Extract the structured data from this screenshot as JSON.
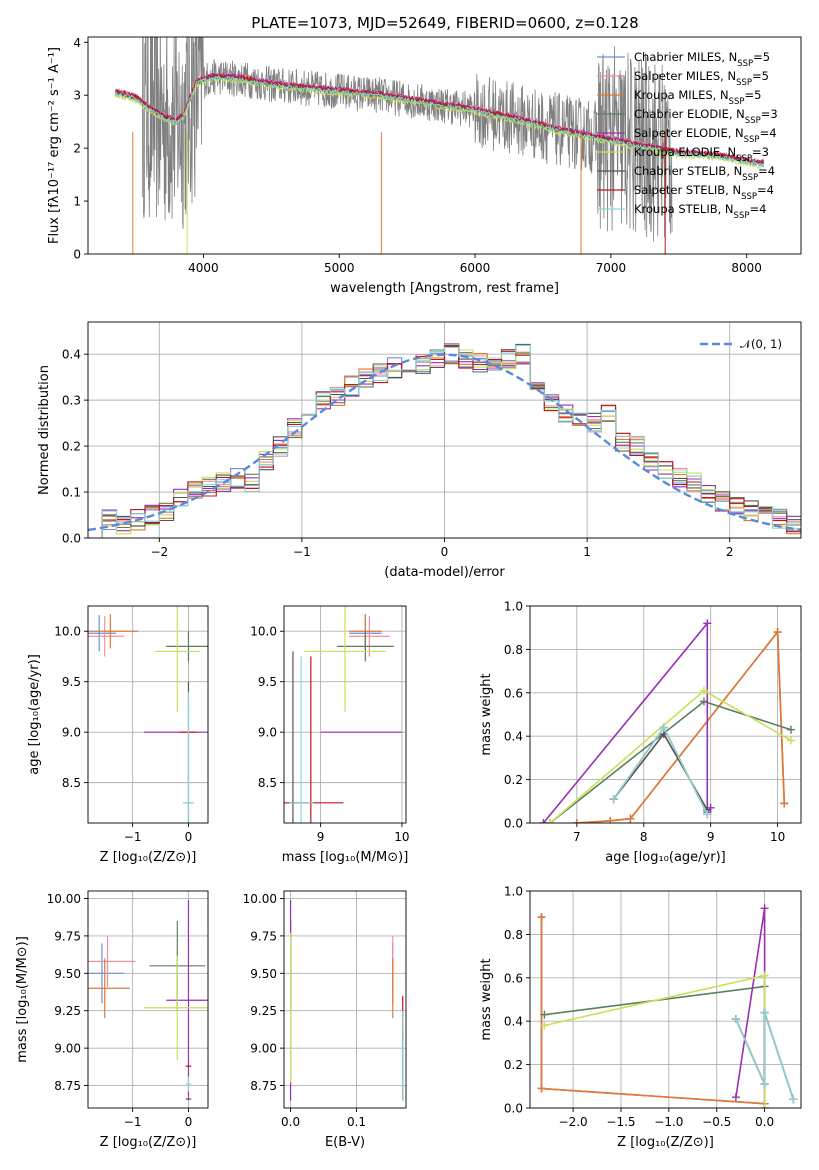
{
  "figure_title": "PLATE=1073, MJD=52649, FIBERID=0600, z=0.128",
  "colors": {
    "Chabrier MILES": "#6b8fd6",
    "Salpeter MILES": "#f0909a",
    "Kroupa MILES": "#e07a30",
    "Chabrier ELODIE": "#5b7f5e",
    "Salpeter ELODIE": "#9a2fb5",
    "Kroupa ELODIE": "#c8e05a",
    "Chabrier STELIB": "#555555",
    "Salpeter STELIB": "#c0161b",
    "Kroupa STELIB": "#8ad6d6",
    "data": "#808080",
    "normal": "#5b8bd8"
  },
  "chart_data": [
    {
      "id": "spectrum",
      "type": "line",
      "title": "PLATE=1073, MJD=52649, FIBERID=0600, z=0.128",
      "xlabel": "wavelength [Angstrom, rest frame]",
      "ylabel": "Flux [fλ10⁻¹⁷ erg cm⁻² s⁻¹ A⁻¹]",
      "xlim": [
        3150,
        8400
      ],
      "ylim": [
        0,
        4.1
      ],
      "xticks": [
        4000,
        5000,
        6000,
        7000,
        8000
      ],
      "yticks": [
        0,
        1,
        2,
        3,
        4
      ],
      "legend_loc": "upper right",
      "model_continuum": [
        [
          3350,
          3.05
        ],
        [
          3500,
          2.95
        ],
        [
          3600,
          2.75
        ],
        [
          3700,
          2.6
        ],
        [
          3800,
          2.5
        ],
        [
          3850,
          2.6
        ],
        [
          3950,
          3.25
        ],
        [
          4100,
          3.35
        ],
        [
          4300,
          3.3
        ],
        [
          4500,
          3.2
        ],
        [
          4700,
          3.15
        ],
        [
          4900,
          3.1
        ],
        [
          5100,
          3.05
        ],
        [
          5300,
          3.0
        ],
        [
          5500,
          2.92
        ],
        [
          5800,
          2.8
        ],
        [
          6000,
          2.72
        ],
        [
          6300,
          2.55
        ],
        [
          6600,
          2.35
        ],
        [
          6900,
          2.2
        ],
        [
          7200,
          2.05
        ],
        [
          7500,
          1.9
        ],
        [
          7800,
          1.85
        ],
        [
          8100,
          1.7
        ]
      ],
      "data_range": [
        3550,
        7450
      ],
      "series": [
        {
          "name": "Chabrier MILES, N_SSP=5",
          "label_main": "Chabrier MILES, N",
          "label_sub": "SSP",
          "label_end": "=5"
        },
        {
          "name": "Salpeter MILES, N_SSP=5",
          "label_main": "Salpeter MILES, N",
          "label_sub": "SSP",
          "label_end": "=5"
        },
        {
          "name": "Kroupa MILES, N_SSP=5",
          "label_main": "Kroupa MILES, N",
          "label_sub": "SSP",
          "label_end": "=5"
        },
        {
          "name": "Chabrier ELODIE, N_SSP=3",
          "label_main": "Chabrier ELODIE, N",
          "label_sub": "SSP",
          "label_end": "=3"
        },
        {
          "name": "Salpeter ELODIE, N_SSP=4",
          "label_main": "Salpeter ELODIE, N",
          "label_sub": "SSP",
          "label_end": "=4"
        },
        {
          "name": "Kroupa ELODIE, N_SSP=3",
          "label_main": "Kroupa ELODIE, N",
          "label_sub": "SSP",
          "label_end": "=3"
        },
        {
          "name": "Chabrier STELIB, N_SSP=4",
          "label_main": "Chabrier STELIB, N",
          "label_sub": "SSP",
          "label_end": "=4"
        },
        {
          "name": "Salpeter STELIB, N_SSP=4",
          "label_main": "Salpeter STELIB, N",
          "label_sub": "SSP",
          "label_end": "=4"
        },
        {
          "name": "Kroupa STELIB, N_SSP=4",
          "label_main": "Kroupa STELIB, N",
          "label_sub": "SSP",
          "label_end": "=4"
        }
      ]
    },
    {
      "id": "residuals",
      "type": "line",
      "xlabel": "(data-model)/error",
      "ylabel": "Normed distribution",
      "xlim": [
        -2.5,
        2.5
      ],
      "ylim": [
        0,
        0.47
      ],
      "xticks": [
        -2,
        -1,
        0,
        1,
        2
      ],
      "yticks": [
        0.0,
        0.1,
        0.2,
        0.3,
        0.4
      ],
      "grid": true,
      "legend_loc": "upper right",
      "normal_label": "𝒩(0, 1)",
      "bin_edges": [
        -2.5,
        -2.4,
        -2.3,
        -2.2,
        -2.1,
        -2.0,
        -1.9,
        -1.8,
        -1.7,
        -1.6,
        -1.5,
        -1.4,
        -1.3,
        -1.2,
        -1.1,
        -1.0,
        -0.9,
        -0.8,
        -0.7,
        -0.6,
        -0.5,
        -0.4,
        -0.3,
        -0.2,
        -0.1,
        0.0,
        0.1,
        0.2,
        0.3,
        0.4,
        0.5,
        0.6,
        0.7,
        0.8,
        0.9,
        1.0,
        1.1,
        1.2,
        1.3,
        1.4,
        1.5,
        1.6,
        1.7,
        1.8,
        1.9,
        2.0,
        2.1,
        2.2,
        2.3,
        2.4,
        2.5
      ],
      "hist_base": [
        0.02,
        0.04,
        0.03,
        0.04,
        0.05,
        0.06,
        0.09,
        0.1,
        0.11,
        0.12,
        0.13,
        0.12,
        0.17,
        0.2,
        0.24,
        0.27,
        0.3,
        0.31,
        0.33,
        0.35,
        0.36,
        0.37,
        0.37,
        0.38,
        0.39,
        0.4,
        0.39,
        0.38,
        0.38,
        0.39,
        0.4,
        0.34,
        0.29,
        0.27,
        0.25,
        0.25,
        0.27,
        0.21,
        0.2,
        0.17,
        0.15,
        0.13,
        0.12,
        0.1,
        0.08,
        0.07,
        0.06,
        0.05,
        0.04,
        0.03
      ],
      "series": [
        "Chabrier MILES",
        "Salpeter MILES",
        "Kroupa MILES",
        "Chabrier ELODIE",
        "Salpeter ELODIE",
        "Kroupa ELODIE",
        "Chabrier STELIB",
        "Salpeter STELIB",
        "Kroupa STELIB"
      ]
    },
    {
      "id": "age_vs_Z",
      "type": "scatter",
      "xlabel": "Z [log₁₀(Z/Z⊙)]",
      "ylabel": "age  [log₁₀(age/yr)]",
      "xlim": [
        -1.8,
        0.35
      ],
      "ylim": [
        8.1,
        10.25
      ],
      "xticks": [
        -1,
        0
      ],
      "yticks": [
        8.5,
        9.0,
        9.5,
        10.0
      ],
      "grid": true,
      "points": [
        {
          "s": "Chabrier MILES",
          "x": -1.6,
          "y": 9.98,
          "xerr": 0.3,
          "yerr": 0.18
        },
        {
          "s": "Salpeter MILES",
          "x": -1.5,
          "y": 9.95,
          "xerr": 0.35,
          "yerr": 0.2
        },
        {
          "s": "Kroupa MILES",
          "x": -1.4,
          "y": 10.0,
          "xerr": 0.5,
          "yerr": 0.17
        },
        {
          "s": "Chabrier ELODIE",
          "x": 0.0,
          "y": 9.85,
          "xerr": 0.4,
          "yerr": 0.15
        },
        {
          "s": "Salpeter ELODIE",
          "x": -0.2,
          "y": 9.0,
          "xerr": 0.6,
          "yerr": 0.0
        },
        {
          "s": "Kroupa ELODIE",
          "x": -0.2,
          "y": 9.8,
          "xerr": 0.4,
          "yerr": 0.6
        },
        {
          "s": "Chabrier STELIB",
          "x": 0.0,
          "y": 8.3,
          "xerr": 0.05,
          "yerr": 1.2
        },
        {
          "s": "Salpeter STELIB",
          "x": 0.0,
          "y": 9.0,
          "xerr": 0.0,
          "yerr": 0.0
        },
        {
          "s": "Kroupa STELIB",
          "x": 0.0,
          "y": 8.3,
          "xerr": 0.1,
          "yerr": 1.1
        }
      ]
    },
    {
      "id": "age_vs_mass",
      "type": "scatter",
      "xlabel": "mass [log₁₀(M/M⊙)]",
      "xlim": [
        8.55,
        10.05
      ],
      "ylim": [
        8.1,
        10.25
      ],
      "xticks": [
        9,
        10
      ],
      "yticks": [
        8.5,
        9.0,
        9.5,
        10.0
      ],
      "grid": true,
      "points": [
        {
          "s": "Chabrier MILES",
          "x": 9.55,
          "y": 9.98,
          "xerr": 0.2,
          "yerr": 0.18
        },
        {
          "s": "Salpeter MILES",
          "x": 9.6,
          "y": 9.95,
          "xerr": 0.25,
          "yerr": 0.2
        },
        {
          "s": "Kroupa MILES",
          "x": 9.55,
          "y": 10.0,
          "xerr": 0.2,
          "yerr": 0.17
        },
        {
          "s": "Chabrier ELODIE",
          "x": 9.55,
          "y": 9.85,
          "xerr": 0.35,
          "yerr": 0.15
        },
        {
          "s": "Salpeter ELODIE",
          "x": 9.5,
          "y": 9.0,
          "xerr": 0.5,
          "yerr": 0.0
        },
        {
          "s": "Kroupa ELODIE",
          "x": 9.3,
          "y": 9.8,
          "xerr": 0.5,
          "yerr": 0.6
        },
        {
          "s": "Chabrier STELIB",
          "x": 8.66,
          "y": 8.3,
          "xerr": 0.05,
          "yerr": 1.5
        },
        {
          "s": "Salpeter STELIB",
          "x": 8.88,
          "y": 8.3,
          "xerr": 0.4,
          "yerr": 1.45
        },
        {
          "s": "Kroupa STELIB",
          "x": 8.76,
          "y": 8.3,
          "xerr": 0.15,
          "yerr": 1.45
        }
      ]
    },
    {
      "id": "weight_vs_age",
      "type": "line",
      "xlabel": "age  [log₁₀(age/yr)]",
      "ylabel": "mass weight",
      "xlim": [
        6.3,
        10.35
      ],
      "ylim": [
        0,
        1.0
      ],
      "xticks": [
        7,
        8,
        9,
        10
      ],
      "yticks": [
        0.0,
        0.2,
        0.4,
        0.6,
        0.8,
        1.0
      ],
      "grid": true,
      "series": [
        {
          "s": "Chabrier MILES",
          "x": [
            7.0,
            7.5,
            7.8,
            10.0,
            10.1
          ],
          "y": [
            0.0,
            0.01,
            0.02,
            0.88,
            0.09
          ]
        },
        {
          "s": "Salpeter MILES",
          "x": [
            7.0,
            7.5,
            7.8,
            10.0,
            10.1
          ],
          "y": [
            0.0,
            0.01,
            0.02,
            0.88,
            0.09
          ]
        },
        {
          "s": "Kroupa MILES",
          "x": [
            7.0,
            7.5,
            7.8,
            10.0,
            10.1
          ],
          "y": [
            0.0,
            0.01,
            0.02,
            0.88,
            0.09
          ]
        },
        {
          "s": "Chabrier ELODIE",
          "x": [
            6.6,
            8.9,
            10.2
          ],
          "y": [
            0.0,
            0.56,
            0.43
          ]
        },
        {
          "s": "Salpeter ELODIE",
          "x": [
            6.5,
            8.95,
            8.95,
            9.0
          ],
          "y": [
            0.0,
            0.92,
            0.05,
            0.07
          ]
        },
        {
          "s": "Kroupa ELODIE",
          "x": [
            6.6,
            8.9,
            10.2
          ],
          "y": [
            0.0,
            0.61,
            0.38
          ]
        },
        {
          "s": "Chabrier STELIB",
          "x": [
            7.55,
            8.3,
            8.95,
            8.95
          ],
          "y": [
            0.11,
            0.41,
            0.06,
            0.04
          ]
        },
        {
          "s": "Salpeter STELIB",
          "x": [
            7.55,
            8.3,
            8.95,
            8.95
          ],
          "y": [
            0.11,
            0.44,
            0.04,
            0.04
          ]
        },
        {
          "s": "Kroupa STELIB",
          "x": [
            7.55,
            8.3,
            8.95,
            8.95
          ],
          "y": [
            0.11,
            0.44,
            0.04,
            0.04
          ]
        }
      ]
    },
    {
      "id": "mass_vs_Z",
      "type": "scatter",
      "xlabel": "Z [log₁₀(Z/Z⊙)]",
      "ylabel": "mass [log₁₀(M/M⊙)]",
      "xlim": [
        -1.8,
        0.35
      ],
      "ylim": [
        8.6,
        10.05
      ],
      "xticks": [
        -1,
        0
      ],
      "yticks": [
        8.75,
        9.0,
        9.25,
        9.5,
        9.75,
        10.0
      ],
      "grid": true,
      "points": [
        {
          "s": "Chabrier MILES",
          "x": -1.55,
          "y": 9.5,
          "xerr": 0.4,
          "yerr": 0.2
        },
        {
          "s": "Salpeter MILES",
          "x": -1.45,
          "y": 9.58,
          "xerr": 0.5,
          "yerr": 0.17
        },
        {
          "s": "Kroupa MILES",
          "x": -1.5,
          "y": 9.4,
          "xerr": 0.45,
          "yerr": 0.2
        },
        {
          "s": "Chabrier ELODIE",
          "x": -0.2,
          "y": 9.55,
          "xerr": 0.5,
          "yerr": 0.3
        },
        {
          "s": "Salpeter ELODIE",
          "x": 0.0,
          "y": 9.32,
          "xerr": 0.4,
          "yerr": 0.67
        },
        {
          "s": "Kroupa ELODIE",
          "x": -0.2,
          "y": 9.27,
          "xerr": 0.6,
          "yerr": 0.35
        },
        {
          "s": "Chabrier STELIB",
          "x": 0.0,
          "y": 8.66,
          "xerr": 0.05,
          "yerr": 0.0
        },
        {
          "s": "Salpeter STELIB",
          "x": 0.0,
          "y": 8.88,
          "xerr": 0.05,
          "yerr": 0.0
        },
        {
          "s": "Kroupa STELIB",
          "x": 0.0,
          "y": 8.76,
          "xerr": 0.05,
          "yerr": 0.05
        }
      ]
    },
    {
      "id": "mass_vs_EBV",
      "type": "scatter",
      "xlabel": "E(B-V)",
      "xlim": [
        -0.01,
        0.175
      ],
      "ylim": [
        8.6,
        10.05
      ],
      "xticks": [
        0.0,
        0.1
      ],
      "yticks": [
        8.75,
        9.0,
        9.25,
        9.5,
        9.75,
        10.0
      ],
      "grid": true,
      "points": [
        {
          "s": "Chabrier MILES",
          "x": 0.155,
          "y": 9.5,
          "yerr": 0.2
        },
        {
          "s": "Salpeter MILES",
          "x": 0.155,
          "y": 9.58,
          "yerr": 0.17
        },
        {
          "s": "Kroupa MILES",
          "x": 0.155,
          "y": 9.4,
          "yerr": 0.2
        },
        {
          "s": "Chabrier ELODIE",
          "x": 0.0,
          "y": 9.55,
          "yerr": 0.3
        },
        {
          "s": "Salpeter ELODIE",
          "x": 0.0,
          "y": 9.32,
          "yerr": 0.67
        },
        {
          "s": "Kroupa ELODIE",
          "x": 0.0,
          "y": 9.27,
          "yerr": 0.5
        },
        {
          "s": "Chabrier STELIB",
          "x": 0.17,
          "y": 8.9,
          "yerr": 0.25
        },
        {
          "s": "Salpeter STELIB",
          "x": 0.17,
          "y": 9.2,
          "yerr": 0.15
        },
        {
          "s": "Kroupa STELIB",
          "x": 0.17,
          "y": 8.95,
          "yerr": 0.3
        }
      ]
    },
    {
      "id": "weight_vs_Z",
      "type": "line",
      "xlabel": "Z [log₁₀(Z/Z⊙)]",
      "ylabel": "mass weight",
      "xlim": [
        -2.45,
        0.38
      ],
      "ylim": [
        0,
        1.0
      ],
      "xticks": [
        -2.0,
        -1.5,
        -1.0,
        -0.5,
        0.0
      ],
      "yticks": [
        0.0,
        0.2,
        0.4,
        0.6,
        0.8,
        1.0
      ],
      "grid": true,
      "series": [
        {
          "s": "Chabrier MILES",
          "x": [
            -2.33,
            -2.33,
            0.0
          ],
          "y": [
            0.88,
            0.09,
            0.02
          ]
        },
        {
          "s": "Salpeter MILES",
          "x": [
            -2.33,
            -2.33,
            0.0
          ],
          "y": [
            0.88,
            0.09,
            0.02
          ]
        },
        {
          "s": "Kroupa MILES",
          "x": [
            -2.33,
            -2.33,
            0.0
          ],
          "y": [
            0.88,
            0.09,
            0.02
          ]
        },
        {
          "s": "Chabrier ELODIE",
          "x": [
            -2.3,
            0.0
          ],
          "y": [
            0.43,
            0.56
          ]
        },
        {
          "s": "Salpeter ELODIE",
          "x": [
            -0.3,
            0.0,
            0.0
          ],
          "y": [
            0.05,
            0.92,
            0.0
          ]
        },
        {
          "s": "Kroupa ELODIE",
          "x": [
            -2.3,
            0.0,
            0.0
          ],
          "y": [
            0.38,
            0.61,
            0.0
          ]
        },
        {
          "s": "Chabrier STELIB",
          "x": [
            -0.3,
            0.0,
            0.0,
            0.3
          ],
          "y": [
            0.41,
            0.11,
            0.44,
            0.04
          ]
        },
        {
          "s": "Salpeter STELIB",
          "x": [
            -0.3,
            0.0,
            0.0,
            0.3
          ],
          "y": [
            0.41,
            0.11,
            0.44,
            0.04
          ]
        },
        {
          "s": "Kroupa STELIB",
          "x": [
            -0.3,
            0.0,
            0.0,
            0.3
          ],
          "y": [
            0.41,
            0.11,
            0.44,
            0.04
          ]
        }
      ]
    }
  ]
}
